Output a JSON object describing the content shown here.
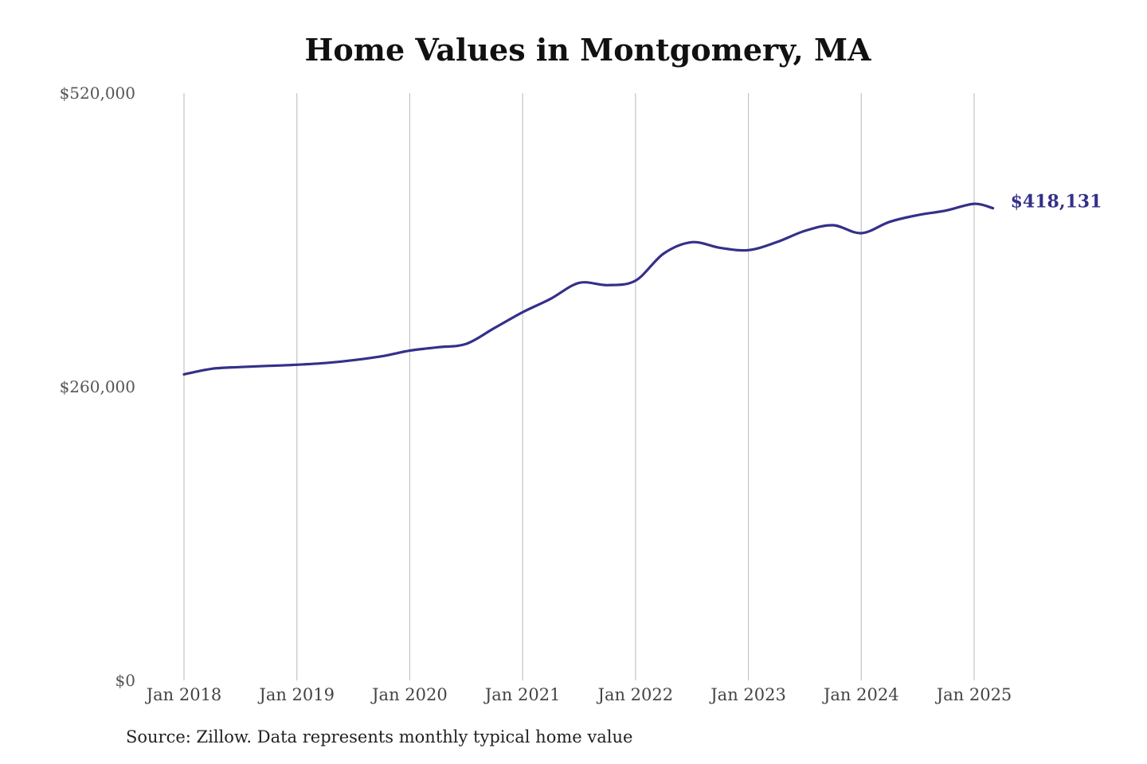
{
  "chart_data": {
    "type": "line",
    "title": "Home Values in Montgomery, MA",
    "xlabel": "",
    "ylabel": "",
    "ylim": [
      0,
      520000
    ],
    "y_ticks": [
      {
        "value": 0,
        "label": "$0"
      },
      {
        "value": 260000,
        "label": "$260,000"
      },
      {
        "value": 520000,
        "label": "$520,000"
      }
    ],
    "x_ticks": [
      {
        "date": "2018-01",
        "label": "Jan 2018"
      },
      {
        "date": "2019-01",
        "label": "Jan 2019"
      },
      {
        "date": "2020-01",
        "label": "Jan 2020"
      },
      {
        "date": "2021-01",
        "label": "Jan 2021"
      },
      {
        "date": "2022-01",
        "label": "Jan 2022"
      },
      {
        "date": "2023-01",
        "label": "Jan 2023"
      },
      {
        "date": "2024-01",
        "label": "Jan 2024"
      },
      {
        "date": "2025-01",
        "label": "Jan 2025"
      }
    ],
    "x_range": [
      "2018-01",
      "2025-03"
    ],
    "grid": "vertical",
    "series": [
      {
        "name": "",
        "color": "#34308A",
        "end_label": "$418,131",
        "points": [
          {
            "x": "2018-01",
            "y": 271000
          },
          {
            "x": "2018-04",
            "y": 276000
          },
          {
            "x": "2018-07",
            "y": 277500
          },
          {
            "x": "2018-10",
            "y": 278500
          },
          {
            "x": "2019-01",
            "y": 279500
          },
          {
            "x": "2019-04",
            "y": 281000
          },
          {
            "x": "2019-07",
            "y": 283500
          },
          {
            "x": "2019-10",
            "y": 287000
          },
          {
            "x": "2020-01",
            "y": 292000
          },
          {
            "x": "2020-04",
            "y": 295000
          },
          {
            "x": "2020-07",
            "y": 298000
          },
          {
            "x": "2020-10",
            "y": 312000
          },
          {
            "x": "2021-01",
            "y": 326000
          },
          {
            "x": "2021-04",
            "y": 338000
          },
          {
            "x": "2021-07",
            "y": 352000
          },
          {
            "x": "2021-10",
            "y": 350000
          },
          {
            "x": "2022-01",
            "y": 354000
          },
          {
            "x": "2022-04",
            "y": 378000
          },
          {
            "x": "2022-07",
            "y": 388000
          },
          {
            "x": "2022-10",
            "y": 383000
          },
          {
            "x": "2023-01",
            "y": 381000
          },
          {
            "x": "2023-04",
            "y": 388000
          },
          {
            "x": "2023-07",
            "y": 398000
          },
          {
            "x": "2023-10",
            "y": 403000
          },
          {
            "x": "2024-01",
            "y": 396000
          },
          {
            "x": "2024-04",
            "y": 406000
          },
          {
            "x": "2024-07",
            "y": 412000
          },
          {
            "x": "2024-10",
            "y": 416000
          },
          {
            "x": "2025-01",
            "y": 422000
          },
          {
            "x": "2025-03",
            "y": 418131
          }
        ]
      }
    ],
    "source": "Source: Zillow. Data represents monthly typical home value"
  }
}
